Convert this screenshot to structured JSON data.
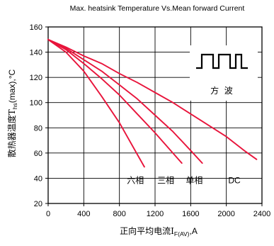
{
  "chart_data": {
    "type": "line",
    "title": "Max. heatsink Temperature Vs.Mean forward Current",
    "xlabel": {
      "prefix": "正向平均电流I",
      "sub": "F(AV)",
      "suffix": ",A"
    },
    "ylabel": {
      "prefix": "散热器温度T",
      "sub": "hs",
      "suffix": "(max),°C"
    },
    "xlim": [
      0,
      2400
    ],
    "ylim": [
      20,
      160
    ],
    "xticks": [
      0,
      400,
      800,
      1200,
      1600,
      2000,
      2400
    ],
    "yticks": [
      20,
      40,
      60,
      80,
      100,
      120,
      140,
      160
    ],
    "grid": true,
    "series": [
      {
        "name": "六相",
        "x": [
          0,
          200,
          400,
          600,
          800,
          1000,
          1080
        ],
        "y": [
          150,
          140,
          125,
          105,
          84,
          59,
          49
        ],
        "label_pos": [
          980,
          36
        ]
      },
      {
        "name": "三相",
        "x": [
          0,
          200,
          400,
          600,
          800,
          1000,
          1200,
          1400,
          1500
        ],
        "y": [
          150,
          142,
          131,
          119,
          106,
          91,
          76,
          60,
          52
        ],
        "label_pos": [
          1320,
          36
        ]
      },
      {
        "name": "单相",
        "x": [
          0,
          200,
          400,
          600,
          800,
          1000,
          1200,
          1400,
          1600,
          1730
        ],
        "y": [
          150,
          143,
          134,
          125,
          114,
          103,
          90,
          77,
          62,
          52
        ],
        "label_pos": [
          1640,
          36
        ]
      },
      {
        "name": "DC",
        "x": [
          0,
          200,
          400,
          600,
          800,
          1000,
          1200,
          1400,
          1600,
          1800,
          2000,
          2200,
          2340
        ],
        "y": [
          150,
          144,
          137,
          131,
          123,
          116,
          108,
          100,
          91,
          82,
          73,
          62,
          55
        ],
        "label_pos": [
          2090,
          36
        ]
      }
    ],
    "inset": {
      "label": "方  波"
    },
    "colors": {
      "line": "#e8143b",
      "axis": "#000000",
      "grid": "#000000",
      "text": "#000000"
    }
  }
}
